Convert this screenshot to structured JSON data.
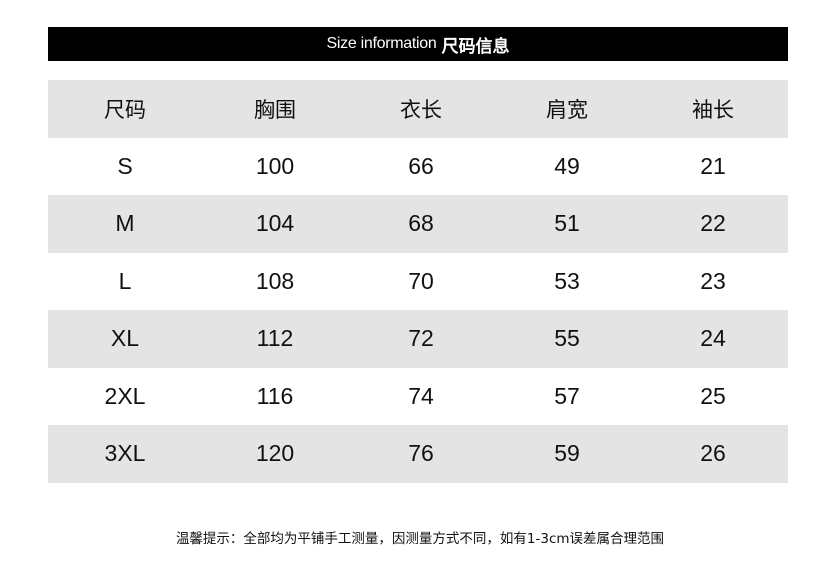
{
  "title": {
    "en": "Size information",
    "zh": "尺码信息"
  },
  "table": {
    "headers": [
      "尺码",
      "胸围",
      "衣长",
      "肩宽",
      "袖长"
    ],
    "rows": [
      [
        "S",
        "100",
        "66",
        "49",
        "21"
      ],
      [
        "M",
        "104",
        "68",
        "51",
        "22"
      ],
      [
        "L",
        "108",
        "70",
        "53",
        "23"
      ],
      [
        "XL",
        "112",
        "72",
        "55",
        "24"
      ],
      [
        "2XL",
        "116",
        "74",
        "57",
        "25"
      ],
      [
        "3XL",
        "120",
        "76",
        "59",
        "26"
      ]
    ]
  },
  "note": "温馨提示：全部均为平铺手工测量，因测量方式不同，如有1-3cm误差属合理范围",
  "colors": {
    "title_bg": "#000000",
    "stripe": "#e4e4e4"
  }
}
